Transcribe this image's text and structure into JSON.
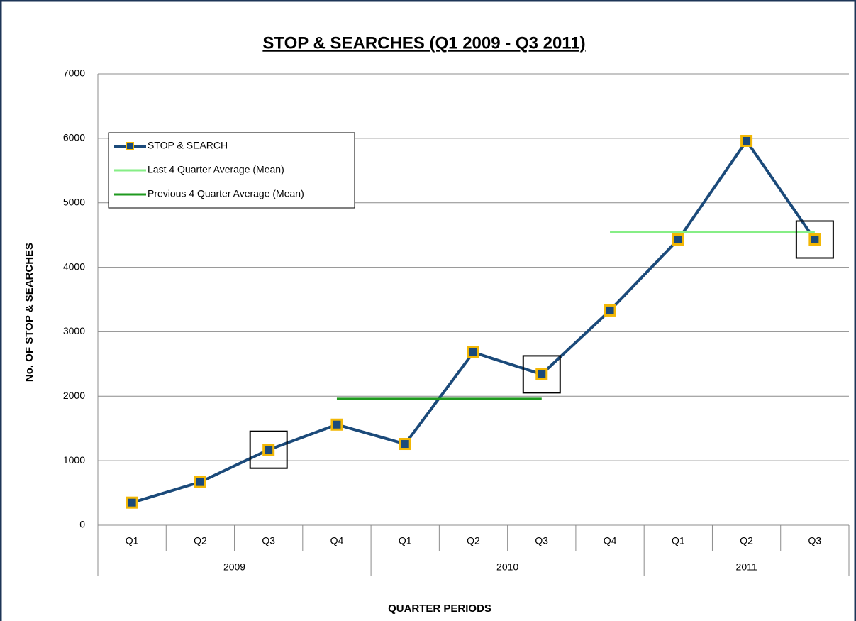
{
  "chart_data": {
    "type": "line",
    "title": "STOP & SEARCHES  (Q1 2009 - Q3 2011)",
    "x_label": "QUARTER PERIODS",
    "y_label": "No. OF STOP & SEARCHES",
    "groups": [
      {
        "name": "2009",
        "categories": [
          "Q1",
          "Q2",
          "Q3",
          "Q4"
        ]
      },
      {
        "name": "2010",
        "categories": [
          "Q1",
          "Q2",
          "Q3",
          "Q4"
        ]
      },
      {
        "name": "2011",
        "categories": [
          "Q1",
          "Q2",
          "Q3"
        ]
      }
    ],
    "series": [
      {
        "name": "STOP & SEARCH",
        "color": "#1b4a7a",
        "marker": true,
        "marker_edge": "#f2b705",
        "values": [
          350,
          670,
          1170,
          1560,
          1260,
          2680,
          2340,
          3330,
          4430,
          5960,
          4430
        ]
      },
      {
        "name": "Last 4 Quarter Average (Mean)",
        "color": "#86ee86",
        "marker": false,
        "values": [
          null,
          null,
          null,
          null,
          null,
          null,
          null,
          4540,
          4540,
          4540,
          4540
        ]
      },
      {
        "name": "Previous 4 Quarter Average (Mean)",
        "color": "#1f9a1f",
        "marker": false,
        "values": [
          null,
          null,
          null,
          1960,
          1960,
          1960,
          1960,
          null,
          null,
          null,
          null
        ]
      }
    ],
    "highlight": [
      2,
      6,
      10
    ],
    "ylim": [
      0,
      7000
    ],
    "yticks": [
      0,
      1000,
      2000,
      3000,
      4000,
      5000,
      6000,
      7000
    ],
    "grid": true,
    "legend": "upper left"
  }
}
